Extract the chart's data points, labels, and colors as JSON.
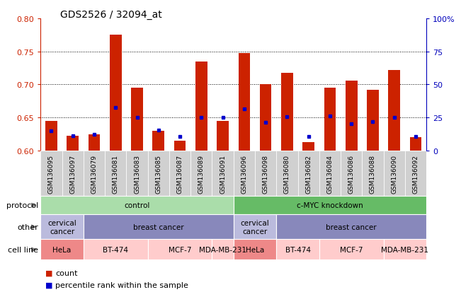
{
  "title": "GDS2526 / 32094_at",
  "samples": [
    "GSM136095",
    "GSM136097",
    "GSM136079",
    "GSM136081",
    "GSM136083",
    "GSM136085",
    "GSM136087",
    "GSM136089",
    "GSM136091",
    "GSM136096",
    "GSM136098",
    "GSM136080",
    "GSM136082",
    "GSM136084",
    "GSM136086",
    "GSM136088",
    "GSM136090",
    "GSM136092"
  ],
  "count_values": [
    0.645,
    0.623,
    0.625,
    0.775,
    0.695,
    0.63,
    0.615,
    0.735,
    0.645,
    0.748,
    0.7,
    0.718,
    0.613,
    0.695,
    0.706,
    0.692,
    0.722,
    0.62
  ],
  "percentile_values": [
    0.63,
    0.622,
    0.625,
    0.665,
    0.65,
    0.631,
    0.621,
    0.65,
    0.65,
    0.663,
    0.643,
    0.651,
    0.621,
    0.652,
    0.641,
    0.644,
    0.65,
    0.621
  ],
  "ylim": [
    0.6,
    0.8
  ],
  "yticks": [
    0.6,
    0.65,
    0.7,
    0.75,
    0.8
  ],
  "right_ytick_values": [
    0,
    25,
    50,
    75,
    100
  ],
  "right_ytick_labels": [
    "0",
    "25",
    "50",
    "75",
    "100%"
  ],
  "bar_color": "#cc2200",
  "percentile_color": "#0000cc",
  "background_color": "#ffffff",
  "protocol_row": {
    "label": "protocol",
    "groups": [
      {
        "text": "control",
        "start": 0,
        "end": 9,
        "color": "#aaddaa"
      },
      {
        "text": "c-MYC knockdown",
        "start": 9,
        "end": 18,
        "color": "#66bb66"
      }
    ]
  },
  "other_row": {
    "label": "other",
    "groups": [
      {
        "text": "cervical\ncancer",
        "start": 0,
        "end": 2,
        "color": "#bbbbdd"
      },
      {
        "text": "breast cancer",
        "start": 2,
        "end": 9,
        "color": "#8888bb"
      },
      {
        "text": "cervical\ncancer",
        "start": 9,
        "end": 11,
        "color": "#bbbbdd"
      },
      {
        "text": "breast cancer",
        "start": 11,
        "end": 18,
        "color": "#8888bb"
      }
    ]
  },
  "cell_line_row": {
    "label": "cell line",
    "groups": [
      {
        "text": "HeLa",
        "start": 0,
        "end": 2,
        "color": "#ee8888"
      },
      {
        "text": "BT-474",
        "start": 2,
        "end": 5,
        "color": "#ffcccc"
      },
      {
        "text": "MCF-7",
        "start": 5,
        "end": 8,
        "color": "#ffcccc"
      },
      {
        "text": "MDA-MB-231",
        "start": 8,
        "end": 9,
        "color": "#ffcccc"
      },
      {
        "text": "HeLa",
        "start": 9,
        "end": 11,
        "color": "#ee8888"
      },
      {
        "text": "BT-474",
        "start": 11,
        "end": 13,
        "color": "#ffcccc"
      },
      {
        "text": "MCF-7",
        "start": 13,
        "end": 16,
        "color": "#ffcccc"
      },
      {
        "text": "MDA-MB-231",
        "start": 16,
        "end": 18,
        "color": "#ffcccc"
      }
    ]
  },
  "legend_items": [
    {
      "label": "count",
      "color": "#cc2200"
    },
    {
      "label": "percentile rank within the sample",
      "color": "#0000cc"
    }
  ],
  "left_tick_color": "#cc2200",
  "right_tick_color": "#0000bb"
}
